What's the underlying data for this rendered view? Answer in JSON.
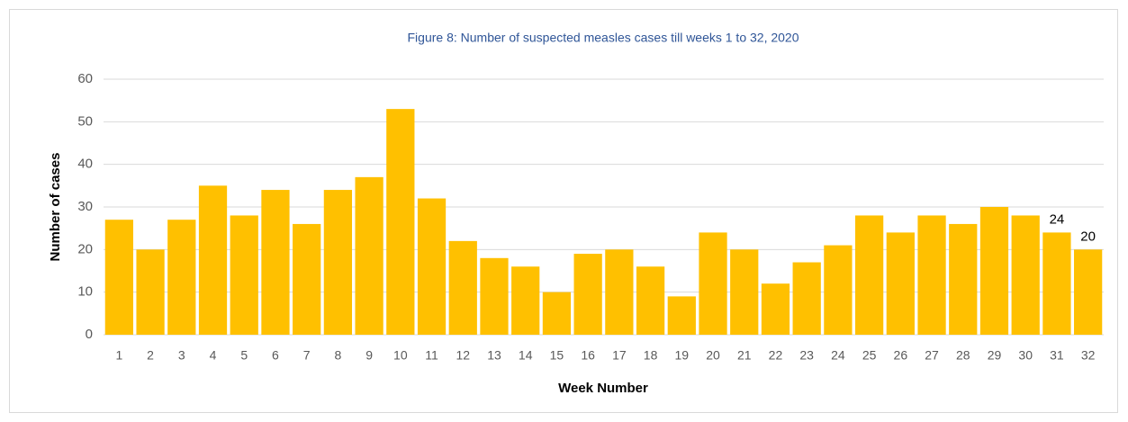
{
  "chart_data": {
    "type": "bar",
    "title": "Figure 8: Number of suspected measles cases till weeks 1 to  32, 2020",
    "x_label": "Week Number",
    "y_label": "Number of cases",
    "categories": [
      "1",
      "2",
      "3",
      "4",
      "5",
      "6",
      "7",
      "8",
      "9",
      "10",
      "11",
      "12",
      "13",
      "14",
      "15",
      "16",
      "17",
      "18",
      "19",
      "20",
      "21",
      "22",
      "23",
      "24",
      "25",
      "26",
      "27",
      "28",
      "29",
      "30",
      "31",
      "32"
    ],
    "values": [
      27,
      20,
      27,
      35,
      28,
      34,
      26,
      34,
      37,
      53,
      32,
      22,
      18,
      16,
      10,
      19,
      20,
      16,
      9,
      24,
      20,
      12,
      17,
      21,
      28,
      24,
      28,
      26,
      30,
      28,
      24,
      20
    ],
    "value_labels": [
      null,
      null,
      null,
      null,
      null,
      null,
      null,
      null,
      null,
      null,
      null,
      null,
      null,
      null,
      null,
      null,
      null,
      null,
      null,
      null,
      null,
      null,
      null,
      null,
      null,
      null,
      null,
      null,
      null,
      null,
      "24",
      "20"
    ],
    "color": "#ffc000",
    "ylim": [
      0,
      60
    ],
    "yticks": [
      0,
      10,
      20,
      30,
      40,
      50,
      60
    ],
    "grid": true
  }
}
